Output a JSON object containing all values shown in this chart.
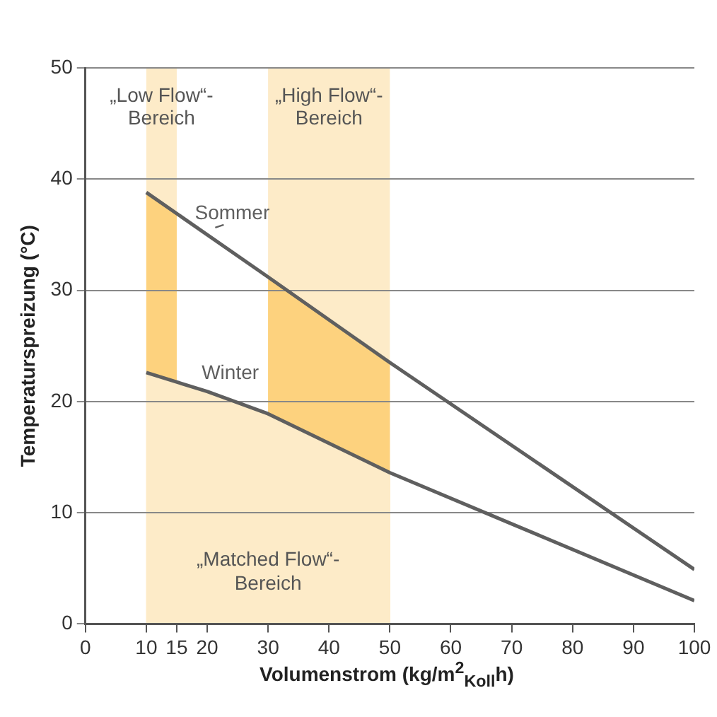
{
  "chart_data": {
    "type": "line",
    "xlabel": "Volumenstrom (kg/m$^{2}$$_{Koll}$h)",
    "ylabel": "Temperaturspreizung (°C)",
    "xlim": [
      0,
      100
    ],
    "xticks": [
      0,
      10,
      15,
      20,
      30,
      40,
      50,
      60,
      70,
      80,
      90,
      100
    ],
    "ylim": [
      0,
      50
    ],
    "yticks": [
      0,
      10,
      20,
      30,
      40,
      50
    ],
    "grid": "y",
    "legend": false,
    "line_style": "solid",
    "marker": "none",
    "series": [
      {
        "type": "area",
        "color": "#fdd27e",
        "x": [
          10,
          15
        ],
        "values": [
          38.8,
          36.9
        ]
      },
      {
        "type": "area",
        "color": "#fdd27e",
        "x": [
          30,
          50
        ],
        "values": [
          31.2,
          23.5
        ]
      },
      {
        "name": "„Matched Flow“-Bereich",
        "type": "area",
        "color": "#fdebc8",
        "x": [
          10,
          20,
          30,
          50
        ],
        "values": [
          22.6,
          20.9,
          18.9,
          13.6
        ]
      },
      {
        "name": "Sommer",
        "color": "#5f5f5f",
        "x": [
          10,
          30,
          50,
          100
        ],
        "values": [
          38.8,
          31.2,
          23.5,
          4.9
        ]
      },
      {
        "name": "Winter",
        "color": "#5f5f5f",
        "x": [
          10,
          20,
          30,
          50,
          70,
          100
        ],
        "values": [
          22.6,
          20.9,
          18.9,
          13.6,
          9.0,
          2.1
        ]
      }
    ],
    "bands": [
      {
        "axis": "x",
        "from": 10,
        "to": 15,
        "label": "„Low Flow“-Bereich",
        "color": "#fdebc8"
      },
      {
        "axis": "x",
        "from": 30,
        "to": 50,
        "label": "„High Flow“-Bereich",
        "color": "#fdebc8"
      }
    ]
  }
}
